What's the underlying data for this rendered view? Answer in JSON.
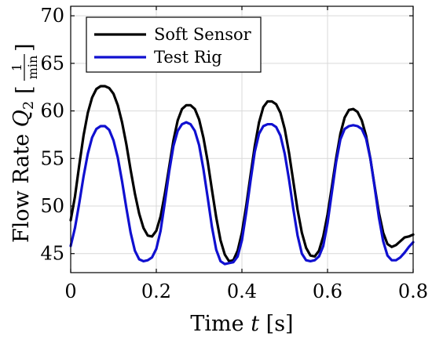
{
  "chart_data": {
    "type": "line",
    "xlabel": {
      "prefix": "Time ",
      "var": "t",
      "unit": " [s]"
    },
    "ylabel": {
      "prefix": "Flow Rate ",
      "var": "Q",
      "sub": "2",
      "unit_num": "1",
      "unit_den": "min"
    },
    "xlim": [
      0,
      0.8
    ],
    "ylim": [
      43,
      71
    ],
    "xticks": [
      0,
      0.2,
      0.4,
      0.6,
      0.8
    ],
    "xtick_labels": [
      "0",
      "0.2",
      "0.4",
      "0.6",
      "0.8"
    ],
    "yticks": [
      45,
      50,
      55,
      60,
      65,
      70
    ],
    "ytick_labels": [
      "45",
      "50",
      "55",
      "60",
      "65",
      "70"
    ],
    "grid": true,
    "legend": {
      "position": "top-left"
    },
    "series": [
      {
        "name": "Soft Sensor",
        "color": "#000000",
        "x": [
          0,
          0.01,
          0.02,
          0.03,
          0.04,
          0.05,
          0.06,
          0.07,
          0.08,
          0.09,
          0.1,
          0.11,
          0.12,
          0.13,
          0.14,
          0.15,
          0.16,
          0.17,
          0.18,
          0.19,
          0.2,
          0.21,
          0.22,
          0.23,
          0.24,
          0.25,
          0.26,
          0.27,
          0.28,
          0.29,
          0.3,
          0.31,
          0.32,
          0.33,
          0.34,
          0.35,
          0.36,
          0.37,
          0.38,
          0.39,
          0.4,
          0.41,
          0.42,
          0.43,
          0.44,
          0.45,
          0.46,
          0.47,
          0.48,
          0.49,
          0.5,
          0.51,
          0.52,
          0.53,
          0.54,
          0.55,
          0.56,
          0.57,
          0.58,
          0.59,
          0.6,
          0.61,
          0.62,
          0.63,
          0.64,
          0.65,
          0.66,
          0.67,
          0.68,
          0.69,
          0.7,
          0.71,
          0.72,
          0.73,
          0.74,
          0.75,
          0.76,
          0.77,
          0.78,
          0.79,
          0.8
        ],
        "y": [
          48.5,
          51.0,
          54.3,
          57.4,
          59.8,
          61.4,
          62.3,
          62.6,
          62.6,
          62.4,
          61.8,
          60.6,
          58.8,
          56.5,
          53.8,
          51.3,
          49.2,
          47.7,
          46.9,
          46.8,
          47.4,
          48.9,
          51.3,
          54.1,
          56.9,
          59.0,
          60.2,
          60.6,
          60.6,
          60.2,
          59.1,
          57.2,
          54.7,
          51.7,
          48.8,
          46.4,
          44.9,
          44.2,
          44.3,
          45.3,
          47.2,
          50.0,
          53.2,
          56.3,
          58.8,
          60.4,
          61.0,
          61.0,
          60.7,
          59.8,
          58.1,
          55.6,
          52.6,
          49.6,
          47.2,
          45.6,
          44.8,
          44.7,
          45.3,
          46.8,
          49.1,
          52.0,
          55.0,
          57.6,
          59.3,
          60.1,
          60.2,
          59.9,
          59.0,
          57.4,
          55.0,
          52.1,
          49.3,
          47.2,
          46.0,
          45.7,
          45.9,
          46.3,
          46.7,
          46.8,
          47.0
        ]
      },
      {
        "name": "Test Rig",
        "color": "#1010d0",
        "x": [
          0,
          0.01,
          0.02,
          0.03,
          0.04,
          0.05,
          0.06,
          0.07,
          0.08,
          0.09,
          0.1,
          0.11,
          0.12,
          0.13,
          0.14,
          0.15,
          0.16,
          0.17,
          0.18,
          0.19,
          0.2,
          0.21,
          0.22,
          0.23,
          0.24,
          0.25,
          0.26,
          0.27,
          0.28,
          0.29,
          0.3,
          0.31,
          0.32,
          0.33,
          0.34,
          0.35,
          0.36,
          0.37,
          0.38,
          0.39,
          0.4,
          0.41,
          0.42,
          0.43,
          0.44,
          0.45,
          0.46,
          0.47,
          0.48,
          0.49,
          0.5,
          0.51,
          0.52,
          0.53,
          0.54,
          0.55,
          0.56,
          0.57,
          0.58,
          0.59,
          0.6,
          0.61,
          0.62,
          0.63,
          0.64,
          0.65,
          0.66,
          0.67,
          0.68,
          0.69,
          0.7,
          0.71,
          0.72,
          0.73,
          0.74,
          0.75,
          0.76,
          0.77,
          0.78,
          0.79,
          0.8
        ],
        "y": [
          45.8,
          47.7,
          50.3,
          53.1,
          55.5,
          57.2,
          58.1,
          58.4,
          58.4,
          58.0,
          56.9,
          55.1,
          52.6,
          49.8,
          47.2,
          45.3,
          44.4,
          44.2,
          44.3,
          44.6,
          45.5,
          47.4,
          50.4,
          53.6,
          56.3,
          57.9,
          58.6,
          58.8,
          58.6,
          57.9,
          56.4,
          53.9,
          50.9,
          47.8,
          45.4,
          44.2,
          43.9,
          44.0,
          44.1,
          44.7,
          46.4,
          49.3,
          52.6,
          55.7,
          57.6,
          58.4,
          58.6,
          58.6,
          58.3,
          57.4,
          55.5,
          52.8,
          49.7,
          46.9,
          45.0,
          44.3,
          44.2,
          44.3,
          44.7,
          45.8,
          48.2,
          51.4,
          54.6,
          57.0,
          58.1,
          58.4,
          58.5,
          58.4,
          58.1,
          57.1,
          55.0,
          52.0,
          48.8,
          46.3,
          44.8,
          44.3,
          44.3,
          44.6,
          45.1,
          45.7,
          46.2
        ]
      }
    ]
  }
}
